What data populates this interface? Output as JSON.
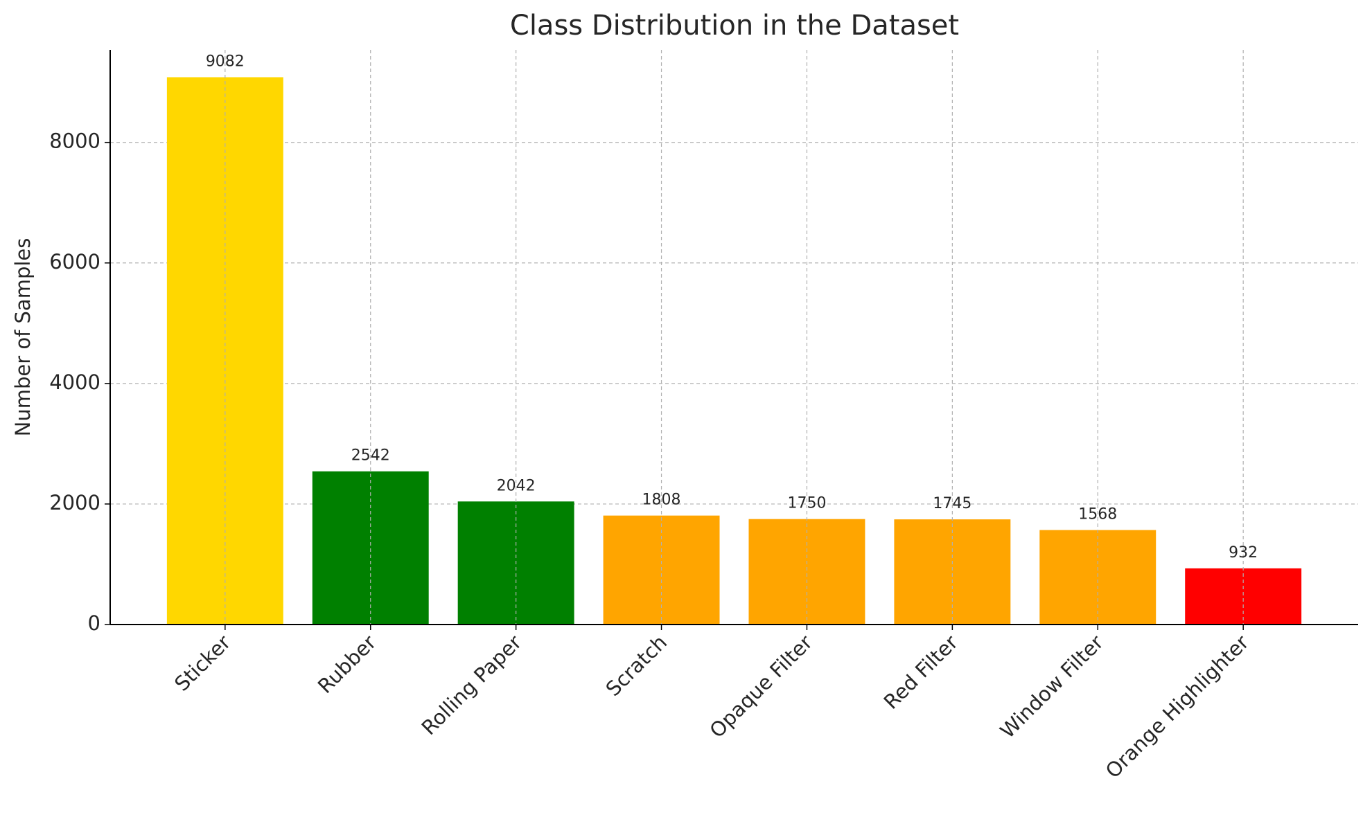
{
  "chart_data": {
    "type": "bar",
    "title": "Class Distribution in the Dataset",
    "y_label": "Number of Samples",
    "categories": [
      "Sticker",
      "Rubber",
      "Rolling Paper",
      "Scratch",
      "Opaque Filter",
      "Red Filter",
      "Window Filter",
      "Orange Highlighter"
    ],
    "values": [
      9082,
      2542,
      2042,
      1808,
      1750,
      1745,
      1568,
      932
    ],
    "colors": [
      "#FFD700",
      "#008000",
      "#008000",
      "#FFA500",
      "#FFA500",
      "#FFA500",
      "#FFA500",
      "#FF0000"
    ],
    "ylim": [
      0,
      9536
    ],
    "yticks": [
      0,
      2000,
      4000,
      6000,
      8000
    ],
    "grid": true
  }
}
